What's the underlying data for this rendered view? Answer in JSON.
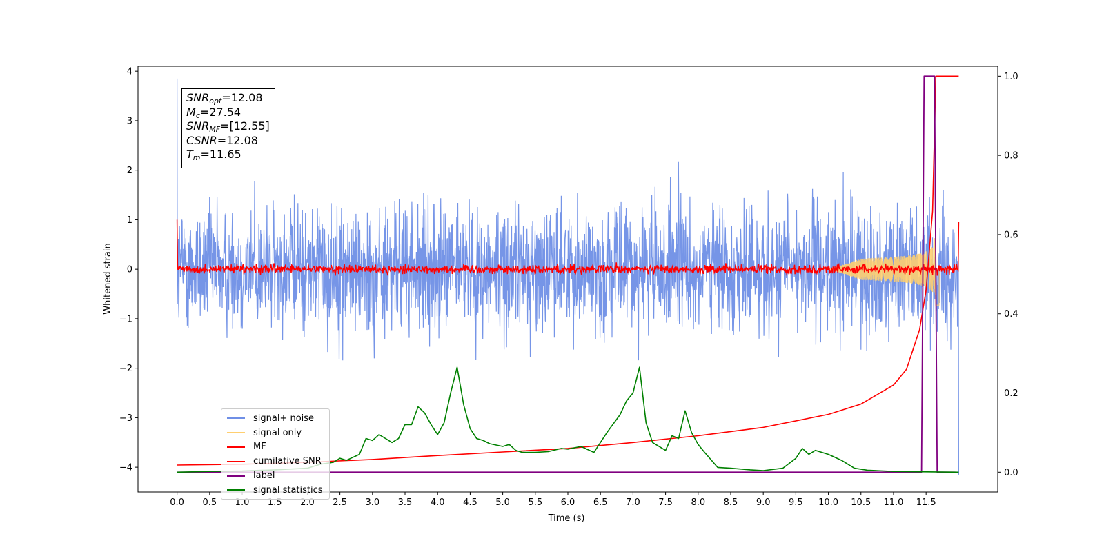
{
  "chart_data": {
    "type": "line",
    "xlabel": "Time (s)",
    "ylabel": "Whitened strain",
    "xlim": [
      -0.6,
      12.6
    ],
    "ylim": [
      -4.5,
      4.1
    ],
    "y2lim": [
      -0.05,
      1.025
    ],
    "x_ticks": [
      0.0,
      0.5,
      1.0,
      1.5,
      2.0,
      2.5,
      3.0,
      3.5,
      4.0,
      4.5,
      5.0,
      5.5,
      6.0,
      6.5,
      7.0,
      7.5,
      8.0,
      8.5,
      9.0,
      9.5,
      10.0,
      10.5,
      11.0,
      11.5
    ],
    "x_tick_labels": [
      "0.0",
      "0.5",
      "1.0",
      "1.5",
      "2.0",
      "2.5",
      "3.0",
      "3.5",
      "4.0",
      "4.5",
      "5.0",
      "5.5",
      "6.0",
      "6.5",
      "7.0",
      "7.5",
      "8.0",
      "8.5",
      "9.0",
      "9.5",
      "10.0",
      "10.5",
      "11.0",
      "11.5"
    ],
    "y_ticks": [
      4,
      3,
      2,
      1,
      0,
      -1,
      -2,
      -3,
      -4
    ],
    "y_tick_labels": [
      "4",
      "3",
      "2",
      "1",
      "0",
      "−1",
      "−2",
      "−3",
      "−4"
    ],
    "y2_ticks": [
      1.0,
      0.8,
      0.6,
      0.4,
      0.2,
      0.0
    ],
    "y2_tick_labels": [
      "1.0",
      "0.8",
      "0.6",
      "0.4",
      "0.2",
      "0.0"
    ],
    "grid": false,
    "legend_position": "lower-left",
    "annotation": {
      "snr_opt": "=12.08",
      "mc": "=27.54",
      "snr_mf": "=[12.55]",
      "csnr": "=12.08",
      "tm": "=11.65"
    },
    "series": [
      {
        "name": "signal+ noise",
        "color": "#6f8fe6",
        "axis": "left",
        "style": "noise band",
        "x_range": [
          0.0,
          12.0
        ],
        "typical_range": [
          -1.5,
          1.5
        ],
        "extreme_min": -4.15,
        "extreme_max": 3.85
      },
      {
        "name": "signal only",
        "color": "#ffcf70",
        "axis": "left",
        "style": "chirp",
        "x_range": [
          0.0,
          12.0
        ],
        "peak_time": 11.65,
        "peak_amplitude": 0.9
      },
      {
        "name": "MF",
        "color": "#ff0000",
        "axis": "left",
        "style": "noisy line",
        "x_range": [
          0.0,
          12.0
        ],
        "level": 0.0,
        "start_value": 1.0,
        "end_value": 0.95
      },
      {
        "name": "cumilative SNR",
        "color": "#ff0000",
        "axis": "right",
        "x": [
          0.0,
          1.0,
          2.0,
          3.0,
          4.0,
          5.0,
          6.0,
          7.0,
          8.0,
          9.0,
          10.0,
          10.5,
          11.0,
          11.2,
          11.4,
          11.5,
          11.6,
          11.65,
          11.7,
          12.0
        ],
        "values": [
          0.018,
          0.02,
          0.025,
          0.032,
          0.042,
          0.051,
          0.06,
          0.075,
          0.092,
          0.113,
          0.146,
          0.172,
          0.22,
          0.26,
          0.36,
          0.46,
          0.66,
          1.0,
          1.0,
          1.0
        ]
      },
      {
        "name": "label",
        "color": "#800080",
        "axis": "right",
        "x": [
          0.0,
          11.43,
          11.47,
          11.63,
          11.67,
          11.95
        ],
        "values": [
          0.0,
          0.0,
          1.0,
          1.0,
          0.0,
          0.0
        ]
      },
      {
        "name": "signal statistics",
        "color": "#008000",
        "axis": "right",
        "x": [
          0.0,
          0.5,
          1.0,
          1.5,
          2.0,
          2.2,
          2.4,
          2.5,
          2.6,
          2.8,
          2.9,
          3.0,
          3.1,
          3.2,
          3.3,
          3.4,
          3.5,
          3.6,
          3.7,
          3.8,
          3.9,
          4.0,
          4.1,
          4.2,
          4.3,
          4.4,
          4.5,
          4.6,
          4.7,
          4.8,
          5.0,
          5.1,
          5.2,
          5.3,
          5.5,
          5.7,
          5.9,
          6.0,
          6.2,
          6.4,
          6.6,
          6.8,
          6.9,
          7.0,
          7.1,
          7.2,
          7.3,
          7.5,
          7.6,
          7.7,
          7.8,
          7.9,
          8.0,
          8.1,
          8.3,
          8.5,
          8.8,
          9.0,
          9.3,
          9.5,
          9.6,
          9.7,
          9.8,
          10.0,
          10.2,
          10.4,
          10.6,
          11.0,
          11.4,
          12.0
        ],
        "values": [
          0.0,
          0.002,
          0.003,
          0.006,
          0.01,
          0.02,
          0.025,
          0.035,
          0.03,
          0.045,
          0.085,
          0.08,
          0.095,
          0.085,
          0.075,
          0.085,
          0.12,
          0.12,
          0.165,
          0.15,
          0.12,
          0.095,
          0.125,
          0.2,
          0.265,
          0.17,
          0.11,
          0.085,
          0.08,
          0.072,
          0.065,
          0.07,
          0.055,
          0.05,
          0.05,
          0.052,
          0.06,
          0.058,
          0.065,
          0.05,
          0.1,
          0.145,
          0.18,
          0.2,
          0.265,
          0.125,
          0.075,
          0.055,
          0.092,
          0.085,
          0.155,
          0.1,
          0.07,
          0.05,
          0.012,
          0.01,
          0.006,
          0.004,
          0.01,
          0.035,
          0.06,
          0.045,
          0.055,
          0.045,
          0.03,
          0.01,
          0.005,
          0.002,
          0.001,
          0.0
        ]
      }
    ]
  }
}
